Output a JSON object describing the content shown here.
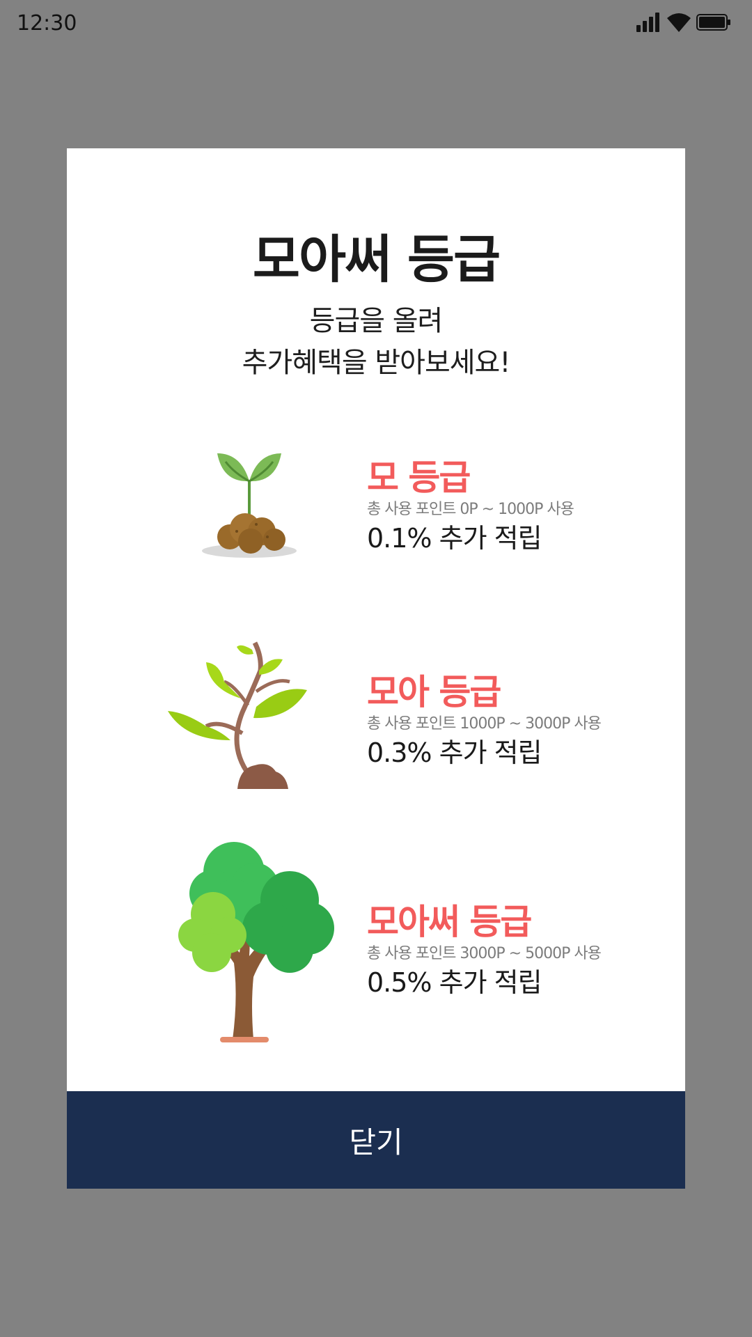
{
  "status_bar": {
    "time": "12:30",
    "icons": [
      "signal-icon",
      "wifi-icon",
      "battery-icon"
    ]
  },
  "modal": {
    "title": "모아써 등급",
    "subtitle_line1": "등급을 올려",
    "subtitle_line2": "추가혜택을 받아보세요!",
    "grades": [
      {
        "name": "모 등급",
        "range": "총 사용 포인트 0P ~ 1000P 사용",
        "rate": "0.1% 추가 적립",
        "icon": "sprout-icon"
      },
      {
        "name": "모아 등급",
        "range": "총 사용 포인트 1000P ~ 3000P 사용",
        "rate": "0.3% 추가 적립",
        "icon": "sapling-icon"
      },
      {
        "name": "모아써 등급",
        "range": "총 사용 포인트 3000P ~ 5000P 사용",
        "rate": "0.5% 추가 적립",
        "icon": "tree-icon"
      }
    ],
    "close_label": "닫기"
  },
  "colors": {
    "backdrop": "#828282",
    "grade_name": "#f25b5b",
    "close_button": "#1b2e50"
  }
}
